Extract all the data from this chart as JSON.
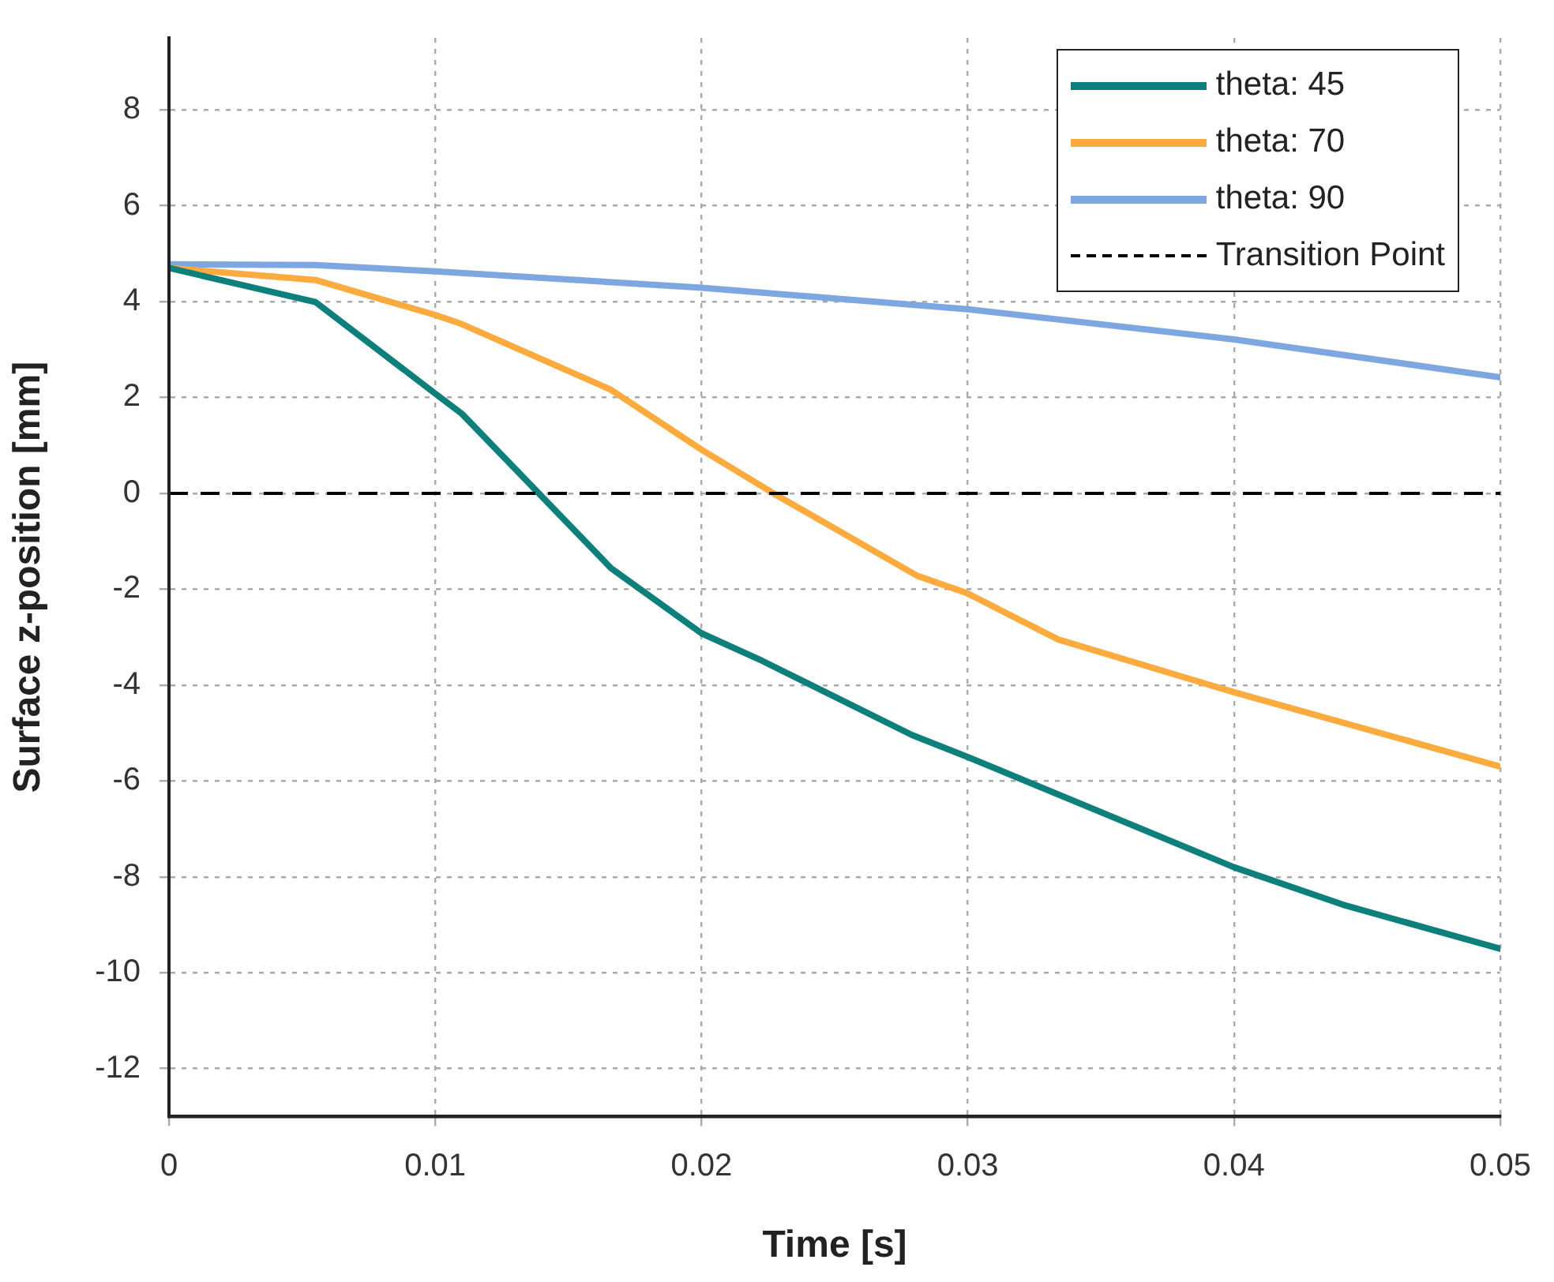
{
  "chart_data": {
    "type": "line",
    "xlabel": "Time [s]",
    "ylabel": "Surface z-position [mm]",
    "xlim": [
      0,
      0.05
    ],
    "xticks": [
      0,
      0.01,
      0.02,
      0.03,
      0.04,
      0.05
    ],
    "ylim": [
      -13,
      9.5
    ],
    "yticks": [
      -12,
      -10,
      -8,
      -6,
      -4,
      -2,
      0,
      2,
      4,
      6,
      8
    ],
    "grid": true,
    "legend": "top right",
    "line_style": "solid",
    "marker": "none",
    "series": [
      {
        "name": "theta: 45",
        "color": "#0e7f7a",
        "x": [
          0,
          0.0055,
          0.01,
          0.011,
          0.0166,
          0.02,
          0.0223,
          0.0279,
          0.03,
          0.04,
          0.0442,
          0.05
        ],
        "values": [
          4.7,
          3.99,
          2.08,
          1.66,
          -1.56,
          -2.92,
          -3.5,
          -5.04,
          -5.5,
          -7.8,
          -8.6,
          -9.5
        ]
      },
      {
        "name": "theta: 70",
        "color": "#fdaa3e",
        "x": [
          0,
          0.0055,
          0.01,
          0.011,
          0.0166,
          0.02,
          0.0227,
          0.0281,
          0.03,
          0.0334,
          0.04,
          0.05
        ],
        "values": [
          4.7,
          4.45,
          3.72,
          3.53,
          2.16,
          0.91,
          0,
          -1.72,
          -2.09,
          -3.05,
          -4.15,
          -5.7
        ]
      },
      {
        "name": "theta: 90",
        "color": "#7ea6e0",
        "x": [
          0,
          0.0055,
          0.01,
          0.02,
          0.03,
          0.04,
          0.05
        ],
        "values": [
          4.78,
          4.76,
          4.63,
          4.29,
          3.84,
          3.21,
          2.42
        ]
      }
    ],
    "ref_lines": [
      {
        "axis": "y",
        "value": 0,
        "label": "Transition Point",
        "color": "#000000",
        "line_style": "dashed"
      }
    ]
  }
}
